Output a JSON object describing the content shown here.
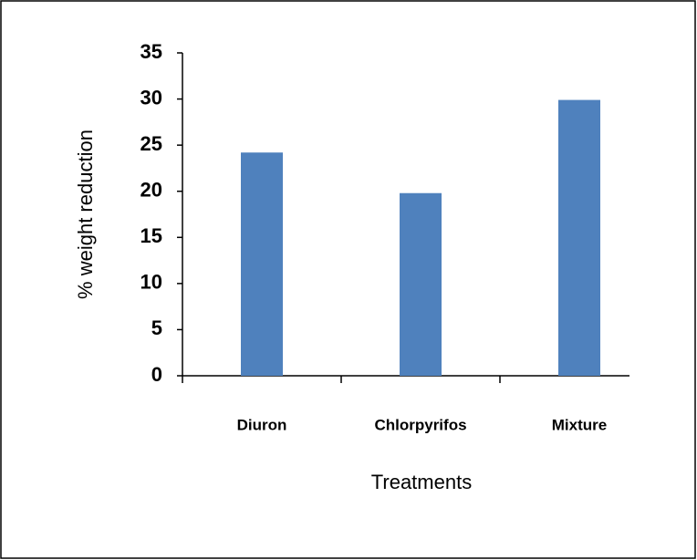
{
  "chart_data": {
    "type": "bar",
    "categories": [
      "Diuron",
      "Chlorpyrifos",
      "Mixture"
    ],
    "values": [
      24.2,
      19.8,
      29.9
    ],
    "color": "#4f81bd",
    "ylim": [
      0,
      35
    ],
    "yticks": [
      0,
      5,
      10,
      15,
      20,
      25,
      30,
      35
    ],
    "y_label": "% weight reduction",
    "x_label": "Treatments",
    "grid": false
  }
}
